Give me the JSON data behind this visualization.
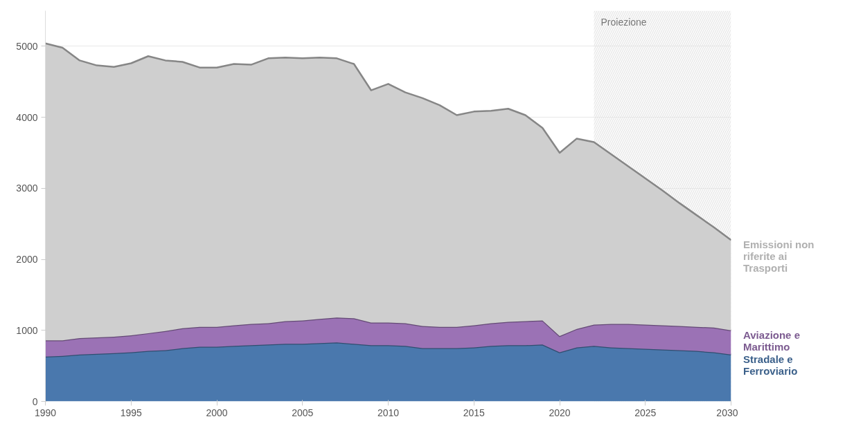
{
  "chart_data": {
    "type": "area",
    "stacked": true,
    "x": [
      1990,
      1991,
      1992,
      1993,
      1994,
      1995,
      1996,
      1997,
      1998,
      1999,
      2000,
      2001,
      2002,
      2003,
      2004,
      2005,
      2006,
      2007,
      2008,
      2009,
      2010,
      2011,
      2012,
      2013,
      2014,
      2015,
      2016,
      2017,
      2018,
      2019,
      2020,
      2021,
      2022,
      2023,
      2024,
      2025,
      2026,
      2027,
      2028,
      2029,
      2030
    ],
    "series": [
      {
        "name": "Stradale e Ferroviario",
        "color": "#4a78ad",
        "values": [
          630,
          640,
          660,
          670,
          680,
          690,
          710,
          720,
          750,
          770,
          770,
          780,
          790,
          800,
          810,
          810,
          820,
          830,
          810,
          790,
          790,
          780,
          750,
          750,
          750,
          760,
          780,
          790,
          790,
          800,
          690,
          760,
          780,
          760,
          750,
          740,
          730,
          720,
          710,
          690,
          660
        ]
      },
      {
        "name": "Aviazione e Marittimo",
        "color": "#9b72b5",
        "values": [
          230,
          220,
          230,
          230,
          230,
          240,
          250,
          270,
          280,
          280,
          280,
          290,
          300,
          300,
          320,
          330,
          340,
          350,
          360,
          320,
          320,
          320,
          310,
          300,
          300,
          310,
          320,
          330,
          340,
          340,
          230,
          260,
          300,
          330,
          340,
          340,
          340,
          340,
          340,
          350,
          340
        ]
      },
      {
        "name": "Emissioni non riferite ai Trasporti",
        "color": "#cfcfcf",
        "values": [
          4180,
          4120,
          3910,
          3830,
          3800,
          3830,
          3900,
          3810,
          3750,
          3650,
          3650,
          3680,
          3650,
          3730,
          3710,
          3690,
          3680,
          3650,
          3580,
          3270,
          3360,
          3250,
          3210,
          3120,
          2980,
          3010,
          2990,
          3000,
          2900,
          2710,
          2580,
          2680,
          2570,
          2390,
          2220,
          2060,
          1900,
          1730,
          1570,
          1410,
          1270
        ]
      }
    ],
    "xlim": [
      1990,
      2030
    ],
    "ylim": [
      0,
      5500
    ],
    "xticks": [
      1990,
      1995,
      2000,
      2005,
      2010,
      2015,
      2020,
      2025,
      2030
    ],
    "yticks": [
      0,
      1000,
      2000,
      3000,
      4000,
      5000
    ],
    "grid": "y",
    "legend": false,
    "bands": [
      {
        "axis": "x",
        "from": 2022,
        "to": 2030,
        "label": "Proiezione",
        "color": "#f0f0f0"
      }
    ]
  }
}
